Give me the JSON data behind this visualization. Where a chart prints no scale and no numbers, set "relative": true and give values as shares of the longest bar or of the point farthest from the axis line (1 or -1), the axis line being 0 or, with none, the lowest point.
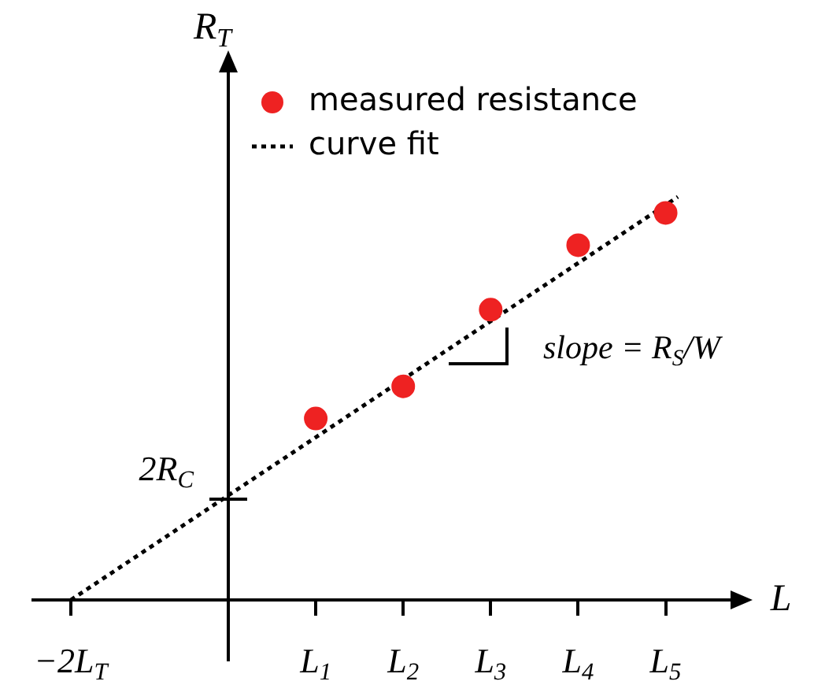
{
  "chart_data": {
    "type": "scatter",
    "relative": true,
    "xlabel": "L",
    "ylabel": "R$_{T}$",
    "xlim": [
      -2.25,
      5.85
    ],
    "xticks": [
      {
        "value": -1.8,
        "label": "−2L$_{T}$"
      },
      {
        "value": 1,
        "label": "L$_{1}$"
      },
      {
        "value": 2,
        "label": "L$_{2}$"
      },
      {
        "value": 3,
        "label": "L$_{3}$"
      },
      {
        "value": 4,
        "label": "L$_{4}$"
      },
      {
        "value": 5,
        "label": "L$_{5}$"
      }
    ],
    "legend": "top",
    "series": [
      {
        "name": "measured resistance",
        "type": "scatter",
        "color": "#ee2222",
        "marker": "circle",
        "x": [
          1,
          2,
          3,
          4,
          5
        ],
        "values": [
          0.45,
          0.53,
          0.72,
          0.88,
          0.96
        ]
      },
      {
        "name": "curve fit",
        "type": "line",
        "color": "#000000",
        "line_style": "dotted",
        "marker": "none",
        "x": [
          -1.8,
          5.14
        ],
        "values": [
          0,
          1
        ]
      }
    ],
    "annotations": [
      {
        "text": "2R$_{C}$",
        "x": 0,
        "y": 0.25
      },
      {
        "text": "slope = R$_{S}$/W"
      }
    ]
  }
}
